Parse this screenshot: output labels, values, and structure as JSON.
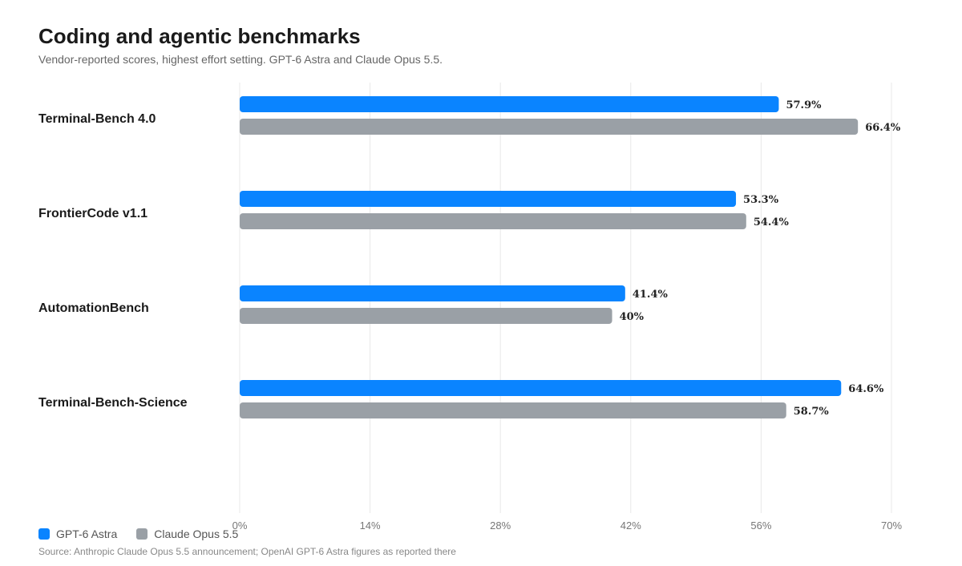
{
  "colors": {
    "gpt": "#0a84ff",
    "claude": "#9aa0a6",
    "grid": "#e8e8e8",
    "tick": "#777777",
    "category": "#1a1a1a",
    "value_label": "#222222"
  },
  "chart_data": {
    "type": "bar",
    "orientation": "horizontal",
    "title": "Coding and agentic benchmarks",
    "subtitle": "Vendor-reported scores, highest effort setting. GPT-6 Astra and Claude Opus 5.5.",
    "categories": [
      "Terminal-Bench 4.0",
      "FrontierCode v1.1",
      "AutomationBench",
      "Terminal-Bench-Science"
    ],
    "series": [
      {
        "name": "GPT-6 Astra",
        "values": [
          57.9,
          53.3,
          41.4,
          64.6
        ],
        "labels": [
          "57.9%",
          "53.3%",
          "41.4%",
          "64.6%"
        ]
      },
      {
        "name": "Claude Opus 5.5",
        "values": [
          66.4,
          54.4,
          40,
          58.7
        ],
        "labels": [
          "66.4%",
          "54.4%",
          "40%",
          "58.7%"
        ]
      }
    ],
    "xlim": [
      0,
      70
    ],
    "xticks": [
      0,
      14,
      28,
      42,
      56,
      70
    ],
    "xtick_labels": [
      "0%",
      "14%",
      "28%",
      "42%",
      "56%",
      "70%"
    ],
    "grid": true,
    "legend_position": "bottom-left",
    "source": "Source: Anthropic Claude Opus 5.5 announcement; OpenAI GPT-6 Astra figures as reported there"
  }
}
